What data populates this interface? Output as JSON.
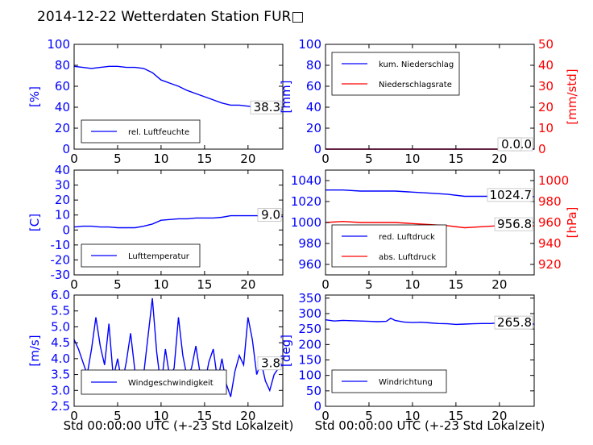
{
  "figure": {
    "title": "2014-12-22 Wetterdaten Station FUR□"
  },
  "colors": {
    "left_axis": "#0000ff",
    "right_axis": "#ff0000",
    "line_primary": "#0000ff",
    "line_secondary": "#ff0000",
    "axes": "#000000",
    "background": "#ffffff"
  },
  "chart_data": [
    {
      "type": "line",
      "panel": "top-left",
      "xlabel": "",
      "ylabel": "[%]",
      "xlim": [
        0,
        24
      ],
      "ylim": [
        0,
        100
      ],
      "xticks": [
        0,
        5,
        10,
        15,
        20
      ],
      "yticks": [
        0,
        20,
        40,
        60,
        80,
        100
      ],
      "legend_position": "lower-left",
      "last_value_label": "38.3",
      "series": [
        {
          "name": "rel. Luftfeuchte",
          "axis": "left",
          "color": "#0000ff",
          "x": [
            0,
            1,
            2,
            3,
            4,
            5,
            6,
            7,
            8,
            9,
            10,
            11,
            12,
            13,
            14,
            15,
            16,
            17,
            18,
            19,
            20,
            21,
            22,
            23,
            24
          ],
          "y": [
            79,
            78,
            77,
            78,
            79,
            79,
            78,
            78,
            77,
            73,
            66,
            63,
            60,
            56,
            53,
            50,
            47,
            44,
            42,
            42,
            41,
            40,
            39,
            38,
            38.3
          ]
        }
      ]
    },
    {
      "type": "line",
      "panel": "top-right",
      "xlabel": "",
      "ylabel": "[mm]",
      "ylabel_right": "[mm/std]",
      "xlim": [
        0,
        24
      ],
      "ylim": [
        0,
        100
      ],
      "ylim_right": [
        0,
        50
      ],
      "xticks": [
        0,
        5,
        10,
        15,
        20
      ],
      "yticks": [
        0,
        20,
        40,
        60,
        80,
        100
      ],
      "yticks_right": [
        0,
        10,
        20,
        30,
        40,
        50
      ],
      "legend_position": "upper-left",
      "last_value_labels": [
        "0.0",
        "0.0"
      ],
      "series": [
        {
          "name": "kum. Niederschlag",
          "axis": "left",
          "color": "#0000ff",
          "x": [
            0,
            24
          ],
          "y": [
            0,
            0
          ]
        },
        {
          "name": "Niederschlagsrate",
          "axis": "right",
          "color": "#ff0000",
          "x": [
            0,
            24
          ],
          "y": [
            0,
            0
          ]
        }
      ]
    },
    {
      "type": "line",
      "panel": "middle-left",
      "xlabel": "",
      "ylabel": "[C]",
      "xlim": [
        0,
        24
      ],
      "ylim": [
        -30,
        40
      ],
      "xticks": [
        0,
        5,
        10,
        15,
        20
      ],
      "yticks": [
        -30,
        -20,
        -10,
        0,
        10,
        20,
        30,
        40
      ],
      "legend_position": "lower-left",
      "last_value_label": "9.0",
      "series": [
        {
          "name": "Lufttemperatur",
          "axis": "left",
          "color": "#0000ff",
          "x": [
            0,
            1,
            2,
            3,
            4,
            5,
            6,
            7,
            8,
            9,
            10,
            11,
            12,
            13,
            14,
            15,
            16,
            17,
            18,
            19,
            20,
            21,
            22,
            23,
            24
          ],
          "y": [
            2,
            2.5,
            2.5,
            2,
            2,
            1.5,
            1.5,
            1.5,
            2.5,
            4,
            6.5,
            7,
            7.5,
            7.5,
            8,
            8,
            8,
            8.5,
            9.5,
            9.5,
            9.5,
            9.5,
            9,
            9,
            9
          ]
        }
      ]
    },
    {
      "type": "line",
      "panel": "middle-right",
      "xlabel": "",
      "ylabel": "",
      "ylabel_right": "[hPa]",
      "xlim": [
        0,
        24
      ],
      "ylim": [
        950,
        1050
      ],
      "ylim_right": [
        910,
        1010
      ],
      "xticks": [
        0,
        5,
        10,
        15,
        20
      ],
      "yticks": [
        960,
        980,
        1000,
        1020,
        1040
      ],
      "yticks_right": [
        920,
        940,
        960,
        980,
        1000
      ],
      "legend_position": "lower-left",
      "last_value_labels": [
        "1024.7",
        "956.8"
      ],
      "series": [
        {
          "name": "red. Luftdruck",
          "axis": "left",
          "color": "#0000ff",
          "x": [
            0,
            2,
            4,
            6,
            8,
            10,
            12,
            14,
            16,
            18,
            20,
            22,
            24
          ],
          "y": [
            1031,
            1031,
            1030,
            1030,
            1030,
            1029,
            1028,
            1027,
            1025,
            1025,
            1025,
            1025,
            1024.7
          ]
        },
        {
          "name": "abs. Luftdruck",
          "axis": "right",
          "color": "#ff0000",
          "x": [
            0,
            2,
            4,
            6,
            8,
            10,
            12,
            14,
            16,
            18,
            20,
            22,
            24
          ],
          "y": [
            960,
            961,
            960,
            960,
            960,
            959,
            958,
            957,
            955,
            956,
            957,
            957,
            956.8
          ]
        }
      ]
    },
    {
      "type": "line",
      "panel": "bottom-left",
      "xlabel": "Std 00:00:00 UTC (+-23 Std Lokalzeit)",
      "ylabel": "[m/s]",
      "xlim": [
        0,
        24
      ],
      "ylim": [
        2.5,
        6.0
      ],
      "xticks": [
        0,
        5,
        10,
        15,
        20
      ],
      "yticks": [
        2.5,
        3.0,
        3.5,
        4.0,
        4.5,
        5.0,
        5.5,
        6.0
      ],
      "legend_position": "lower-left",
      "last_value_label": "3.8",
      "series": [
        {
          "name": "Windgeschwindigkeit",
          "axis": "left",
          "color": "#0000ff",
          "x": [
            0,
            0.5,
            1,
            1.5,
            2,
            2.5,
            3,
            3.5,
            4,
            4.5,
            5,
            5.5,
            6,
            6.5,
            7,
            7.5,
            8,
            8.5,
            9,
            9.5,
            10,
            10.5,
            11,
            11.5,
            12,
            12.5,
            13,
            13.5,
            14,
            14.5,
            15,
            15.5,
            16,
            16.5,
            17,
            17.5,
            18,
            18.5,
            19,
            19.5,
            20,
            20.5,
            21,
            21.5,
            22,
            22.5,
            23,
            23.5,
            24
          ],
          "y": [
            4.6,
            4.3,
            3.9,
            3.5,
            4.3,
            5.3,
            4.4,
            3.8,
            5.1,
            3.4,
            4.0,
            3.2,
            3.9,
            4.8,
            3.6,
            3.2,
            3.5,
            4.7,
            5.9,
            4.2,
            3.1,
            4.3,
            3.4,
            3.7,
            5.3,
            4.1,
            3.4,
            3.7,
            4.4,
            3.5,
            3.2,
            3.9,
            4.3,
            3.3,
            4.0,
            3.2,
            2.8,
            3.6,
            4.1,
            3.8,
            5.3,
            4.6,
            3.5,
            3.9,
            3.3,
            3.0,
            3.5,
            3.7,
            3.8
          ]
        }
      ]
    },
    {
      "type": "line",
      "panel": "bottom-right",
      "xlabel": "Std 00:00:00 UTC (+-23 Std Lokalzeit)",
      "ylabel": "[deg]",
      "xlim": [
        0,
        24
      ],
      "ylim": [
        0,
        360
      ],
      "xticks": [
        0,
        5,
        10,
        15,
        20
      ],
      "yticks": [
        0,
        50,
        100,
        150,
        200,
        250,
        300,
        350
      ],
      "legend_position": "lower-left",
      "last_value_label": "265.8",
      "series": [
        {
          "name": "Windrichtung",
          "axis": "left",
          "color": "#0000ff",
          "x": [
            0,
            1,
            2,
            3,
            4,
            5,
            6,
            7,
            7.5,
            8,
            9,
            10,
            11,
            12,
            13,
            14,
            15,
            16,
            17,
            18,
            19,
            20,
            21,
            22,
            23,
            24
          ],
          "y": [
            280,
            276,
            278,
            277,
            276,
            275,
            274,
            275,
            285,
            278,
            273,
            271,
            272,
            270,
            268,
            267,
            265,
            266,
            267,
            268,
            268,
            270,
            270,
            270,
            268,
            265.8
          ]
        }
      ]
    }
  ]
}
